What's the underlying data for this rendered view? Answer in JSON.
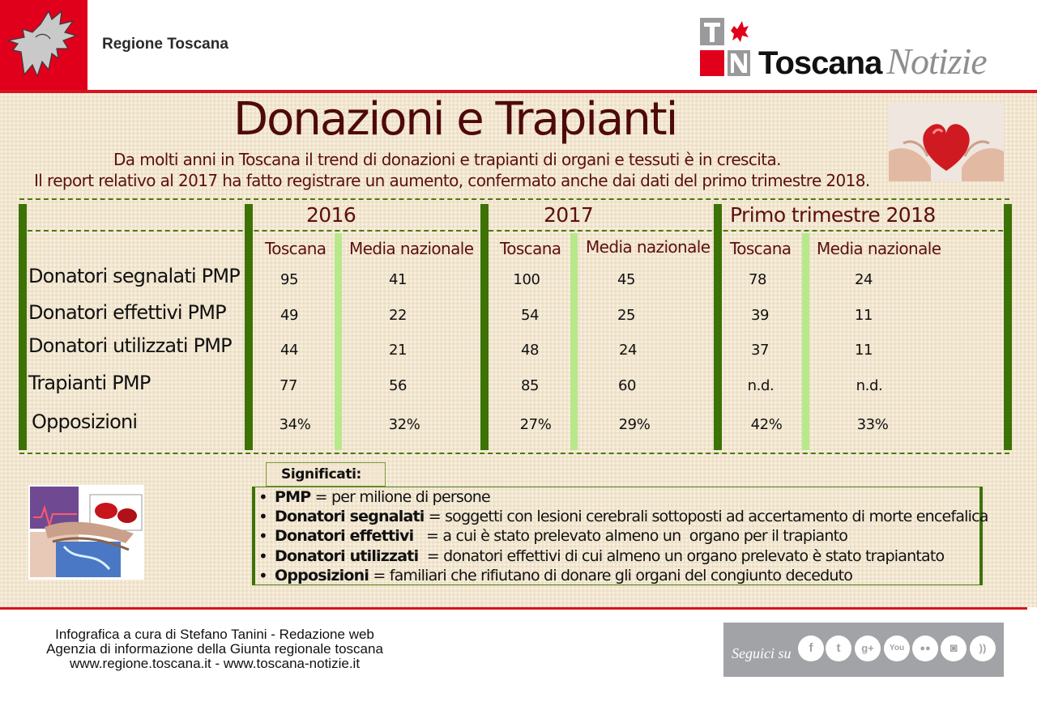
{
  "header": {
    "region_name": "Regione Toscana",
    "brand": {
      "name": "Toscana",
      "suffix": "Notizie"
    }
  },
  "intro": {
    "title": "Donazioni e Trapianti",
    "line1": "Da molti anni in Toscana il trend di donazioni e trapianti di organi e tessuti è in crescita.",
    "line2": "Il report relativo al 2017 ha fatto registrare un aumento, confermato anche dai dati del primo trimestre 2018."
  },
  "table": {
    "periods": [
      "2016",
      "2017",
      "Primo trimestre 2018"
    ],
    "column_headers": [
      "Toscana",
      "Media nazionale"
    ],
    "rows": [
      {
        "label": "Donatori segnalati PMP",
        "values": [
          "95",
          "41",
          "100",
          "45",
          "78",
          "24"
        ]
      },
      {
        "label": "Donatori effettivi PMP",
        "values": [
          "49",
          "22",
          "54",
          "25",
          "39",
          "11"
        ]
      },
      {
        "label": "Donatori utilizzati PMP",
        "values": [
          "44",
          "21",
          "48",
          "24",
          "37",
          "11"
        ]
      },
      {
        "label": "Trapianti PMP",
        "values": [
          "77",
          "56",
          "85",
          "60",
          "n.d.",
          "n.d."
        ]
      },
      {
        "label": "Opposizioni",
        "values": [
          "34%",
          "32%",
          "27%",
          "29%",
          "42%",
          "33%"
        ]
      }
    ]
  },
  "glossary": {
    "label": "Significati:",
    "items": [
      {
        "term": "PMP",
        "definition": " = per milione di persone"
      },
      {
        "term": "Donatori segnalati",
        "definition": " = soggetti con lesioni cerebrali sottoposti ad accertamento di morte encefalica"
      },
      {
        "term": "Donatori effettivi",
        "definition": "   = a cui è stato prelevato almeno un  organo per il trapianto"
      },
      {
        "term": "Donatori utilizzati",
        "definition": "  = donatori effettivi di cui almeno un organo prelevato è stato trapiantato"
      },
      {
        "term": "Opposizioni",
        "definition": " = familiari che rifiutano di donare gli organi del congiunto deceduto"
      }
    ]
  },
  "footer": {
    "credit_lines": [
      "Infografica a cura di Stefano Tanini - Redazione web",
      "Agenzia di informazione della Giunta regionale toscana",
      "www.regione.toscana.it - www.toscana-notizie.it"
    ],
    "social_label": "Seguici su",
    "social_icons": [
      {
        "name": "facebook-icon",
        "glyph": "f"
      },
      {
        "name": "twitter-icon",
        "glyph": "t"
      },
      {
        "name": "google-plus-icon",
        "glyph": "g+"
      },
      {
        "name": "youtube-icon",
        "glyph": "You"
      },
      {
        "name": "flickr-icon",
        "glyph": "●●"
      },
      {
        "name": "instagram-icon",
        "glyph": "◙"
      },
      {
        "name": "rss-icon",
        "glyph": "))"
      }
    ]
  },
  "colors": {
    "red": "#e0001b",
    "maroon": "#5c0f0f",
    "dark_green": "#3c7206",
    "light_green": "#b7e88a",
    "cream": "#f2e6cf",
    "grey": "#a2a3a6"
  }
}
